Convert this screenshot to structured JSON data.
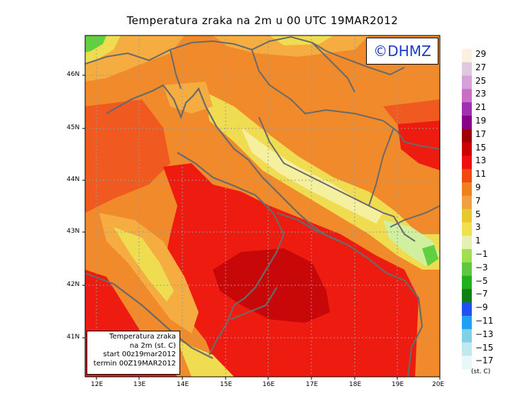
{
  "title": "Temperatura zraka na 2m u 00 UTC 19MAR2012",
  "logo": "©DHMZ",
  "info_box": {
    "line1": "Temperatura zraka",
    "line2": "na 2m (st. C)",
    "line3": "start 00z19mar2012",
    "line4": "termin 00Z19MAR2012"
  },
  "lat_labels": [
    "46N",
    "45N",
    "44N",
    "43N",
    "42N",
    "41N"
  ],
  "lon_labels": [
    "12E",
    "13E",
    "14E",
    "15E",
    "16E",
    "17E",
    "18E",
    "19E",
    "20E"
  ],
  "legend": {
    "labels": [
      "29",
      "27",
      "25",
      "23",
      "21",
      "19",
      "17",
      "15",
      "13",
      "11",
      "9",
      "7",
      "5",
      "3",
      "1",
      "−1",
      "−3",
      "−5",
      "−7",
      "−9",
      "−11",
      "−13",
      "−15",
      "−17"
    ],
    "colors": [
      "#fdf0e0",
      "#e0c8e0",
      "#d8a0d8",
      "#c870c8",
      "#a030b0",
      "#880088",
      "#a00000",
      "#cc0000",
      "#ee1010",
      "#f04a10",
      "#f0801e",
      "#f0a040",
      "#e8c830",
      "#f0e050",
      "#e6f0b0",
      "#a0e050",
      "#60c840",
      "#20b020",
      "#108010",
      "#2050f0",
      "#20a0f0",
      "#80d0e8",
      "#c0e8f0",
      "#e8f8f8"
    ],
    "units": "(st. C)"
  },
  "map": {
    "region": "Adriatic Sea / Croatia",
    "lat_range": [
      40.3,
      46.8
    ],
    "lon_range": [
      11.8,
      20.0
    ],
    "colors": {
      "orange": "#f08a2a",
      "red_orange": "#f05a20",
      "red": "#ee1c10",
      "dark_red": "#c80808",
      "yellow_orange": "#f5ac40",
      "yellow": "#f0dc50",
      "pale_yellow": "#f5f0a0",
      "light_green": "#d0f0a0",
      "green": "#60d040",
      "border_gray": "#6a6a6a"
    }
  }
}
